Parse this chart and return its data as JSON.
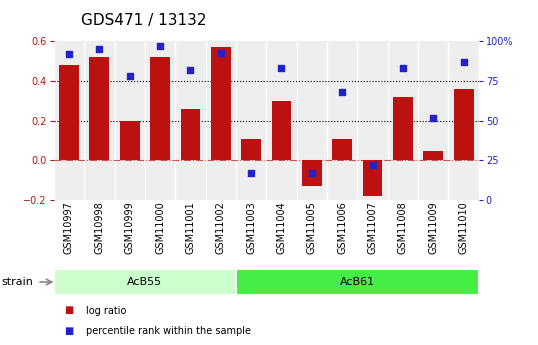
{
  "title": "GDS471 / 13132",
  "samples": [
    "GSM10997",
    "GSM10998",
    "GSM10999",
    "GSM11000",
    "GSM11001",
    "GSM11002",
    "GSM11003",
    "GSM11004",
    "GSM11005",
    "GSM11006",
    "GSM11007",
    "GSM11008",
    "GSM11009",
    "GSM11010"
  ],
  "log_ratio": [
    0.48,
    0.52,
    0.2,
    0.52,
    0.26,
    0.57,
    0.11,
    0.3,
    -0.13,
    0.11,
    -0.18,
    0.32,
    0.05,
    0.36
  ],
  "percentile": [
    92,
    95,
    78,
    97,
    82,
    93,
    17,
    83,
    17,
    68,
    22,
    83,
    52,
    87
  ],
  "bar_color": "#bb1111",
  "dot_color": "#2222cc",
  "ylim_left": [
    -0.2,
    0.6
  ],
  "ylim_right": [
    0,
    100
  ],
  "yticks_left": [
    -0.2,
    0.0,
    0.2,
    0.4,
    0.6
  ],
  "yticks_right": [
    0,
    25,
    50,
    75,
    100
  ],
  "ytick_labels_right": [
    "0",
    "25",
    "50",
    "75",
    "100%"
  ],
  "hlines": [
    0.2,
    0.4
  ],
  "zero_line": 0.0,
  "groups": [
    {
      "label": "AcB55",
      "start": 0,
      "end": 5,
      "color": "#ccffcc"
    },
    {
      "label": "AcB61",
      "start": 6,
      "end": 13,
      "color": "#44ee44"
    }
  ],
  "strain_label": "strain",
  "legend_items": [
    {
      "label": "log ratio",
      "color": "#bb1111"
    },
    {
      "label": "percentile rank within the sample",
      "color": "#2222cc"
    }
  ],
  "background_color": "#ffffff",
  "plot_bg_color": "#eeeeee",
  "title_fontsize": 11,
  "tick_fontsize": 7,
  "bar_width": 0.65
}
